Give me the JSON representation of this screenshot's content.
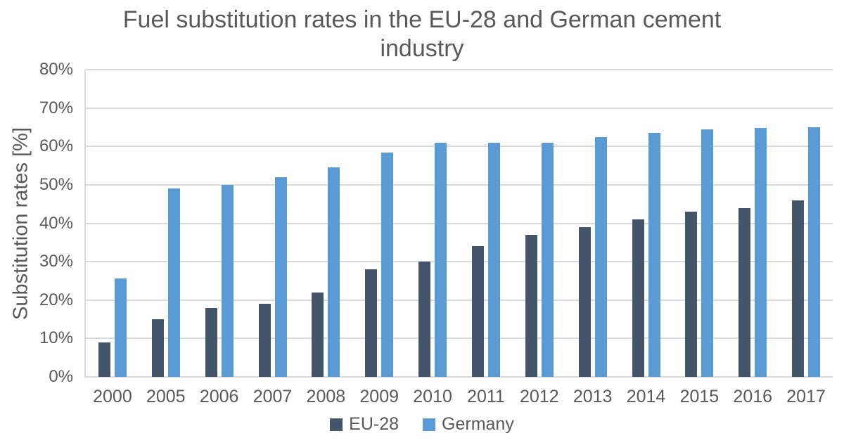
{
  "title": {
    "line1": "Fuel substitution rates in the EU-28 and German cement",
    "line2": "industry"
  },
  "colors": {
    "background": "#FFFFFF",
    "text": "#595959",
    "gridline": "#D9D9D9",
    "series_eu28": "#44546A",
    "series_germany": "#5B9BD5"
  },
  "chart_data": {
    "type": "bar",
    "title": "Fuel substitution rates in the EU-28 and German cement industry",
    "xlabel": "",
    "ylabel": "Substitution rates [%]",
    "ylim": [
      0,
      80
    ],
    "ytick_step": 10,
    "ytick_labels": [
      "0%",
      "10%",
      "20%",
      "30%",
      "40%",
      "50%",
      "60%",
      "70%",
      "80%"
    ],
    "grid": true,
    "legend_position": "bottom",
    "categories": [
      "2000",
      "2005",
      "2006",
      "2007",
      "2008",
      "2009",
      "2010",
      "2011",
      "2012",
      "2013",
      "2014",
      "2015",
      "2016",
      "2017"
    ],
    "series": [
      {
        "name": "EU-28",
        "color": "#44546A",
        "values": [
          9,
          15,
          18,
          19,
          22,
          28,
          30,
          34,
          37,
          39,
          41,
          43,
          44,
          46
        ]
      },
      {
        "name": "Germany",
        "color": "#5B9BD5",
        "values": [
          25.7,
          49,
          50,
          52,
          54.5,
          58.4,
          61,
          61,
          61,
          62.5,
          63.5,
          64.5,
          64.8,
          65
        ]
      }
    ]
  }
}
